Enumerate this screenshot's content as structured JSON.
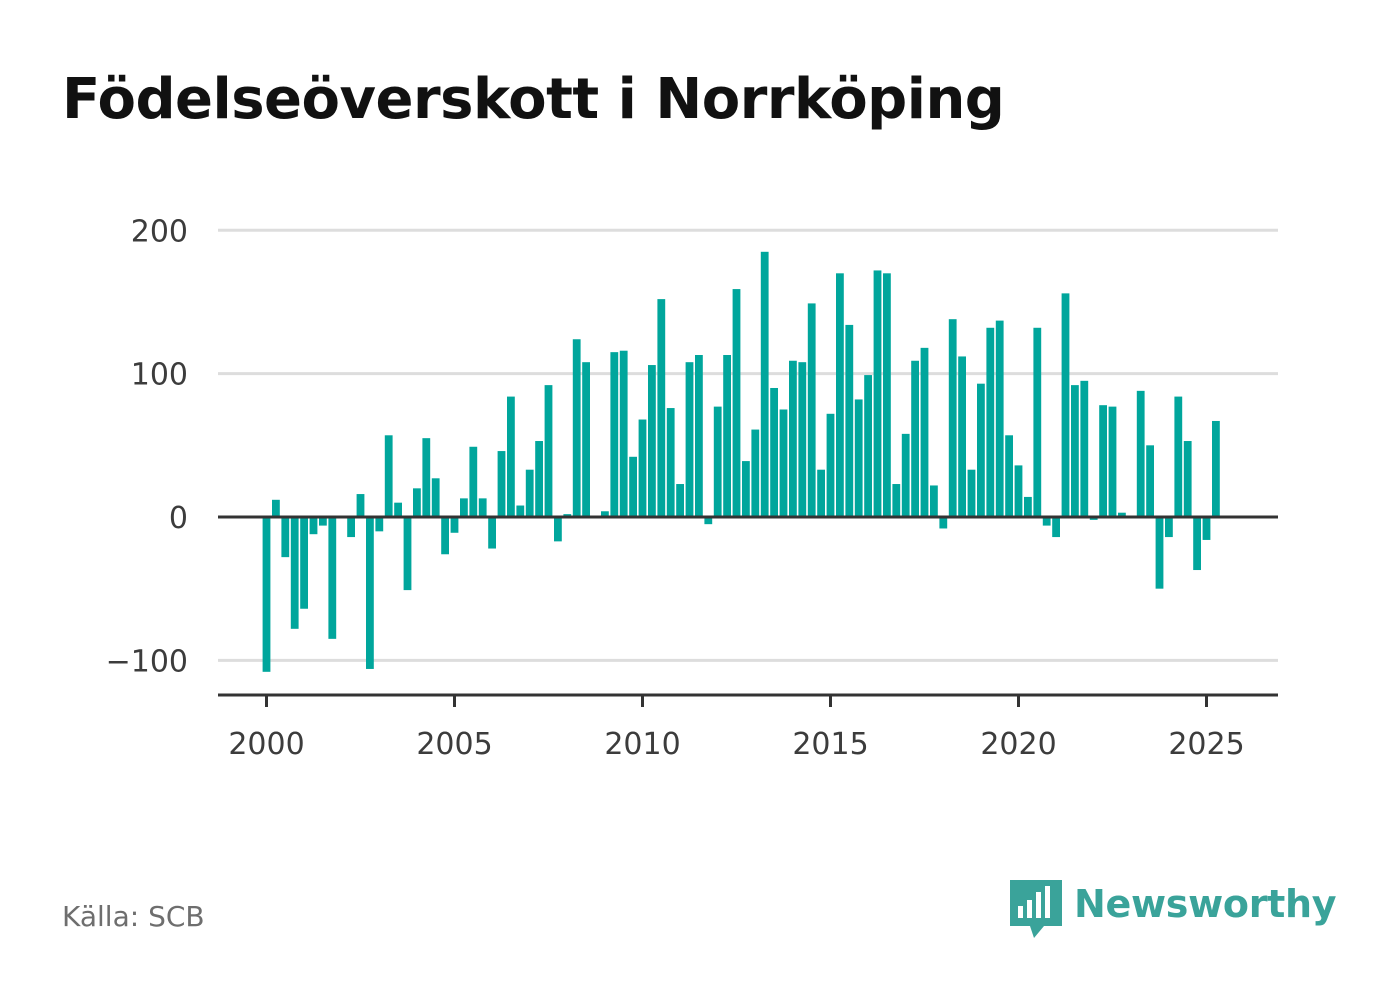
{
  "title": "Födelseöverskott i Norrköping",
  "source": "Källa: SCB",
  "brand": {
    "name": "Newsworthy",
    "icon": "bar-chart-speech-bubble-icon"
  },
  "colors": {
    "bar": "#00a69c",
    "grid": "#dddddd",
    "axis": "#333333",
    "text": "#3c3c3c",
    "brand": "#3aa39a"
  },
  "chart_data": {
    "type": "bar",
    "title": "Födelseöverskott i Norrköping",
    "xlabel": "",
    "ylabel": "",
    "ylim": [
      -124,
      210
    ],
    "xlim": [
      1999.5,
      2026.8
    ],
    "x_ticks": [
      2000,
      2005,
      2010,
      2015,
      2020,
      2025
    ],
    "y_ticks": [
      -100,
      0,
      100,
      200
    ],
    "y_tick_labels": [
      "−100",
      "0",
      "100",
      "200"
    ],
    "grid": true,
    "x_unit": "month",
    "series": [
      {
        "values": [
          {
            "x": "2000-01",
            "y": -108
          },
          {
            "x": "2000-04",
            "y": 12
          },
          {
            "x": "2000-07",
            "y": -28
          },
          {
            "x": "2000-10",
            "y": -78
          },
          {
            "x": "2001-01",
            "y": -64
          },
          {
            "x": "2001-04",
            "y": -12
          },
          {
            "x": "2001-07",
            "y": -6
          },
          {
            "x": "2001-10",
            "y": -85
          },
          {
            "x": "2002-01",
            "y": 0
          },
          {
            "x": "2002-04",
            "y": -14
          },
          {
            "x": "2002-07",
            "y": 16
          },
          {
            "x": "2002-10",
            "y": -106
          },
          {
            "x": "2003-01",
            "y": -10
          },
          {
            "x": "2003-04",
            "y": 57
          },
          {
            "x": "2003-07",
            "y": 10
          },
          {
            "x": "2003-10",
            "y": -51
          },
          {
            "x": "2004-01",
            "y": 20
          },
          {
            "x": "2004-04",
            "y": 55
          },
          {
            "x": "2004-07",
            "y": 27
          },
          {
            "x": "2004-10",
            "y": -26
          },
          {
            "x": "2005-01",
            "y": -11
          },
          {
            "x": "2005-04",
            "y": 13
          },
          {
            "x": "2005-07",
            "y": 49
          },
          {
            "x": "2005-10",
            "y": 13
          },
          {
            "x": "2006-01",
            "y": -22
          },
          {
            "x": "2006-04",
            "y": 46
          },
          {
            "x": "2006-07",
            "y": 84
          },
          {
            "x": "2006-10",
            "y": 8
          },
          {
            "x": "2007-01",
            "y": 33
          },
          {
            "x": "2007-04",
            "y": 53
          },
          {
            "x": "2007-07",
            "y": 92
          },
          {
            "x": "2007-10",
            "y": -17
          },
          {
            "x": "2008-01",
            "y": 2
          },
          {
            "x": "2008-04",
            "y": 124
          },
          {
            "x": "2008-07",
            "y": 108
          },
          {
            "x": "2008-10",
            "y": 0
          },
          {
            "x": "2009-01",
            "y": 4
          },
          {
            "x": "2009-04",
            "y": 115
          },
          {
            "x": "2009-07",
            "y": 116
          },
          {
            "x": "2009-10",
            "y": 42
          },
          {
            "x": "2010-01",
            "y": 68
          },
          {
            "x": "2010-04",
            "y": 106
          },
          {
            "x": "2010-07",
            "y": 152
          },
          {
            "x": "2010-10",
            "y": 76
          },
          {
            "x": "2011-01",
            "y": 23
          },
          {
            "x": "2011-04",
            "y": 108
          },
          {
            "x": "2011-07",
            "y": 113
          },
          {
            "x": "2011-10",
            "y": -5
          },
          {
            "x": "2012-01",
            "y": 77
          },
          {
            "x": "2012-04",
            "y": 113
          },
          {
            "x": "2012-07",
            "y": 159
          },
          {
            "x": "2012-10",
            "y": 39
          },
          {
            "x": "2013-01",
            "y": 61
          },
          {
            "x": "2013-04",
            "y": 185
          },
          {
            "x": "2013-07",
            "y": 90
          },
          {
            "x": "2013-10",
            "y": 75
          },
          {
            "x": "2014-01",
            "y": 109
          },
          {
            "x": "2014-04",
            "y": 108
          },
          {
            "x": "2014-07",
            "y": 149
          },
          {
            "x": "2014-10",
            "y": 33
          },
          {
            "x": "2015-01",
            "y": 72
          },
          {
            "x": "2015-04",
            "y": 170
          },
          {
            "x": "2015-07",
            "y": 134
          },
          {
            "x": "2015-10",
            "y": 82
          },
          {
            "x": "2016-01",
            "y": 99
          },
          {
            "x": "2016-04",
            "y": 172
          },
          {
            "x": "2016-07",
            "y": 170
          },
          {
            "x": "2016-10",
            "y": 23
          },
          {
            "x": "2017-01",
            "y": 58
          },
          {
            "x": "2017-04",
            "y": 109
          },
          {
            "x": "2017-07",
            "y": 118
          },
          {
            "x": "2017-10",
            "y": 22
          },
          {
            "x": "2018-01",
            "y": -8
          },
          {
            "x": "2018-04",
            "y": 138
          },
          {
            "x": "2018-07",
            "y": 112
          },
          {
            "x": "2018-10",
            "y": 33
          },
          {
            "x": "2019-01",
            "y": 93
          },
          {
            "x": "2019-04",
            "y": 132
          },
          {
            "x": "2019-07",
            "y": 137
          },
          {
            "x": "2019-10",
            "y": 57
          },
          {
            "x": "2020-01",
            "y": 36
          },
          {
            "x": "2020-04",
            "y": 14
          },
          {
            "x": "2020-07",
            "y": 132
          },
          {
            "x": "2020-10",
            "y": -6
          },
          {
            "x": "2021-01",
            "y": -14
          },
          {
            "x": "2021-04",
            "y": 156
          },
          {
            "x": "2021-07",
            "y": 92
          },
          {
            "x": "2021-10",
            "y": 95
          },
          {
            "x": "2022-01",
            "y": -2
          },
          {
            "x": "2022-04",
            "y": 78
          },
          {
            "x": "2022-07",
            "y": 77
          },
          {
            "x": "2022-10",
            "y": 3
          },
          {
            "x": "2023-01",
            "y": 0
          },
          {
            "x": "2023-04",
            "y": 88
          },
          {
            "x": "2023-07",
            "y": 50
          },
          {
            "x": "2023-10",
            "y": -50
          },
          {
            "x": "2024-01",
            "y": -14
          },
          {
            "x": "2024-04",
            "y": 84
          },
          {
            "x": "2024-07",
            "y": 53
          },
          {
            "x": "2024-10",
            "y": -37
          },
          {
            "x": "2025-01",
            "y": -16
          },
          {
            "x": "2025-04",
            "y": 67
          }
        ]
      }
    ]
  }
}
